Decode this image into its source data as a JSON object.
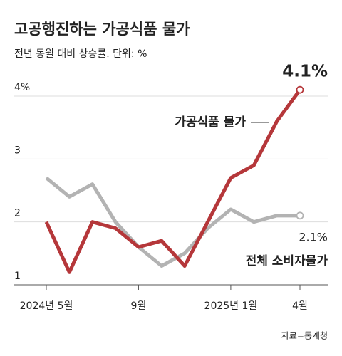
{
  "chart_data": {
    "type": "line",
    "title": "고공행진하는 가공식품 물가",
    "subtitle": "전년 동월 대비 상승률. 단위: %",
    "source": "자료=통계청",
    "categories": [
      "2024년 5월",
      null,
      null,
      null,
      "9월",
      null,
      null,
      null,
      "2025년 1월",
      null,
      null,
      "4월"
    ],
    "series": [
      {
        "name": "전체 소비자물가",
        "color": "#b3b3b3",
        "values": [
          2.7,
          2.4,
          2.6,
          2.0,
          1.6,
          1.3,
          1.5,
          1.9,
          2.2,
          2.0,
          2.1,
          2.1
        ],
        "value_labels": [
          null,
          null,
          null,
          null,
          null,
          null,
          null,
          null,
          null,
          null,
          null,
          "2.1%"
        ]
      },
      {
        "name": "가공식품 물가",
        "color": "#b5373a",
        "values": [
          2.0,
          1.2,
          2.0,
          1.9,
          1.6,
          1.7,
          1.3,
          2.0,
          2.7,
          2.9,
          3.6,
          4.1
        ],
        "value_labels": [
          null,
          null,
          null,
          null,
          null,
          null,
          null,
          null,
          null,
          null,
          null,
          "4.1%"
        ]
      }
    ],
    "ylim": [
      1,
      4
    ],
    "yticks": [
      1,
      2,
      3,
      {
        "value": 4,
        "label": "4%"
      }
    ],
    "grid": true
  }
}
